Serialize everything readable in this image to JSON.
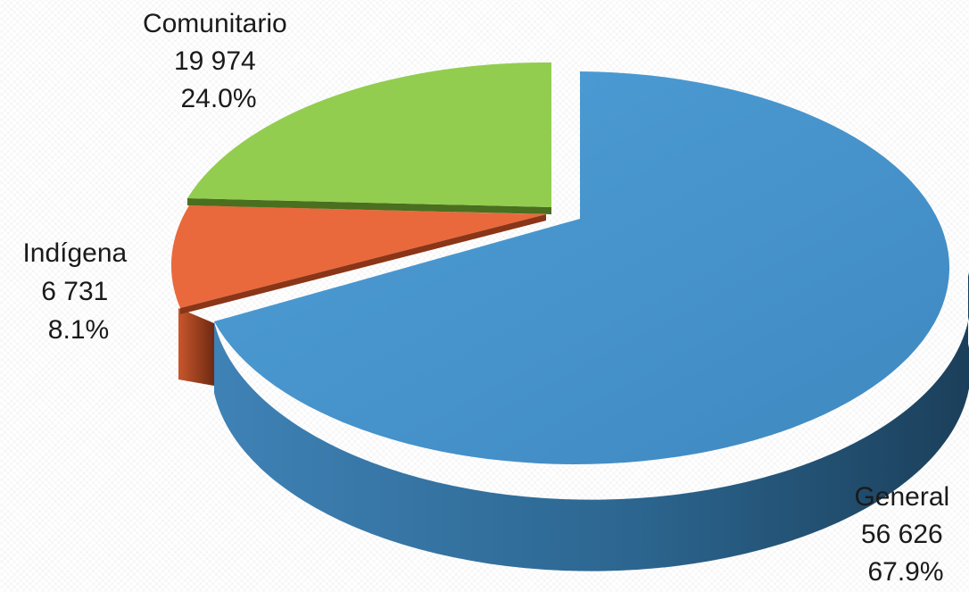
{
  "chart_data": {
    "type": "pie",
    "style": "3d-exploded",
    "title": "",
    "slices": [
      {
        "name": "General",
        "value": "56 626",
        "percent": "67.9%",
        "numeric": 56626,
        "share": 67.9,
        "color": "#4a97cf",
        "side_color": "#2f6f9d"
      },
      {
        "name": "Indígena",
        "value": "6 731",
        "percent": "8.1%",
        "numeric": 6731,
        "share": 8.1,
        "color": "#e8683c",
        "side_color": "#8a3518"
      },
      {
        "name": "Comunitario",
        "value": "19 974",
        "percent": "24.0%",
        "numeric": 19974,
        "share": 24.0,
        "color": "#92cd50",
        "side_color": "#4f7a22"
      }
    ]
  }
}
